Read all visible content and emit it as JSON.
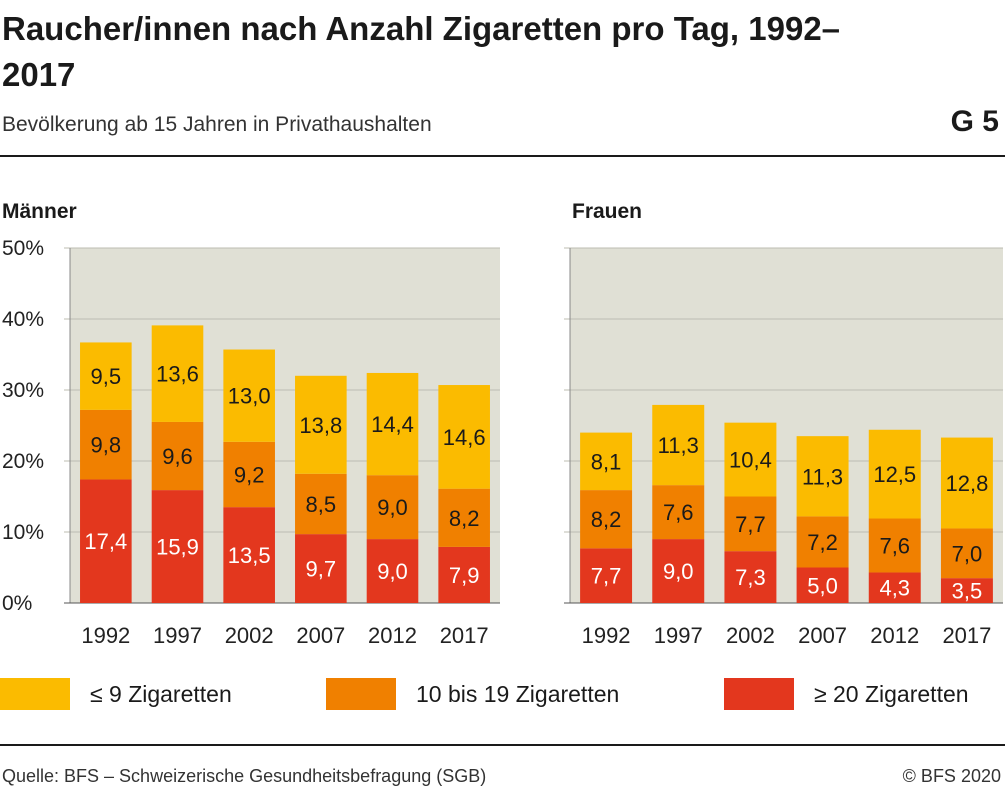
{
  "header": {
    "title": "Raucher/innen nach Anzahl Zigaretten pro Tag, 1992–2017",
    "subtitle": "Bevölkerung ab 15 Jahren in Privathaushalten",
    "figure_number": "G 5"
  },
  "chart_data": [
    {
      "type": "bar",
      "stacked": true,
      "title": "Männer",
      "categories": [
        "1992",
        "1997",
        "2002",
        "2007",
        "2012",
        "2017"
      ],
      "series": [
        {
          "name": "≥ 20 Zigaretten",
          "color": "#e3371e",
          "values": [
            17.4,
            15.9,
            13.5,
            9.7,
            9.0,
            7.9
          ]
        },
        {
          "name": "10 bis 19 Zigaretten",
          "color": "#f08000",
          "values": [
            9.8,
            9.6,
            9.2,
            8.5,
            9.0,
            8.2
          ]
        },
        {
          "name": "≤ 9 Zigaretten",
          "color": "#fbbb00",
          "values": [
            9.5,
            13.6,
            13.0,
            13.8,
            14.4,
            14.6
          ]
        }
      ],
      "ylim": [
        0,
        50
      ],
      "yticks": [
        "0%",
        "10%",
        "20%",
        "30%",
        "40%",
        "50%"
      ],
      "grid": true
    },
    {
      "type": "bar",
      "stacked": true,
      "title": "Frauen",
      "categories": [
        "1992",
        "1997",
        "2002",
        "2007",
        "2012",
        "2017"
      ],
      "series": [
        {
          "name": "≥ 20 Zigaretten",
          "color": "#e3371e",
          "values": [
            7.7,
            9.0,
            7.3,
            5.0,
            4.3,
            3.5
          ]
        },
        {
          "name": "10 bis 19 Zigaretten",
          "color": "#f08000",
          "values": [
            8.2,
            7.6,
            7.7,
            7.2,
            7.6,
            7.0
          ]
        },
        {
          "name": "≤ 9 Zigaretten",
          "color": "#fbbb00",
          "values": [
            8.1,
            11.3,
            10.4,
            11.3,
            12.5,
            12.8
          ]
        }
      ],
      "ylim": [
        0,
        50
      ],
      "grid": true
    }
  ],
  "legend": [
    {
      "label": "≤ 9 Zigaretten",
      "color": "#fbbb00"
    },
    {
      "label": "10 bis 19 Zigaretten",
      "color": "#f08000"
    },
    {
      "label": "≥ 20 Zigaretten",
      "color": "#e3371e"
    }
  ],
  "footer": {
    "source": "Quelle: BFS – Schweizerische Gesundheitsbefragung (SGB)",
    "copyright": "© BFS 2020"
  }
}
